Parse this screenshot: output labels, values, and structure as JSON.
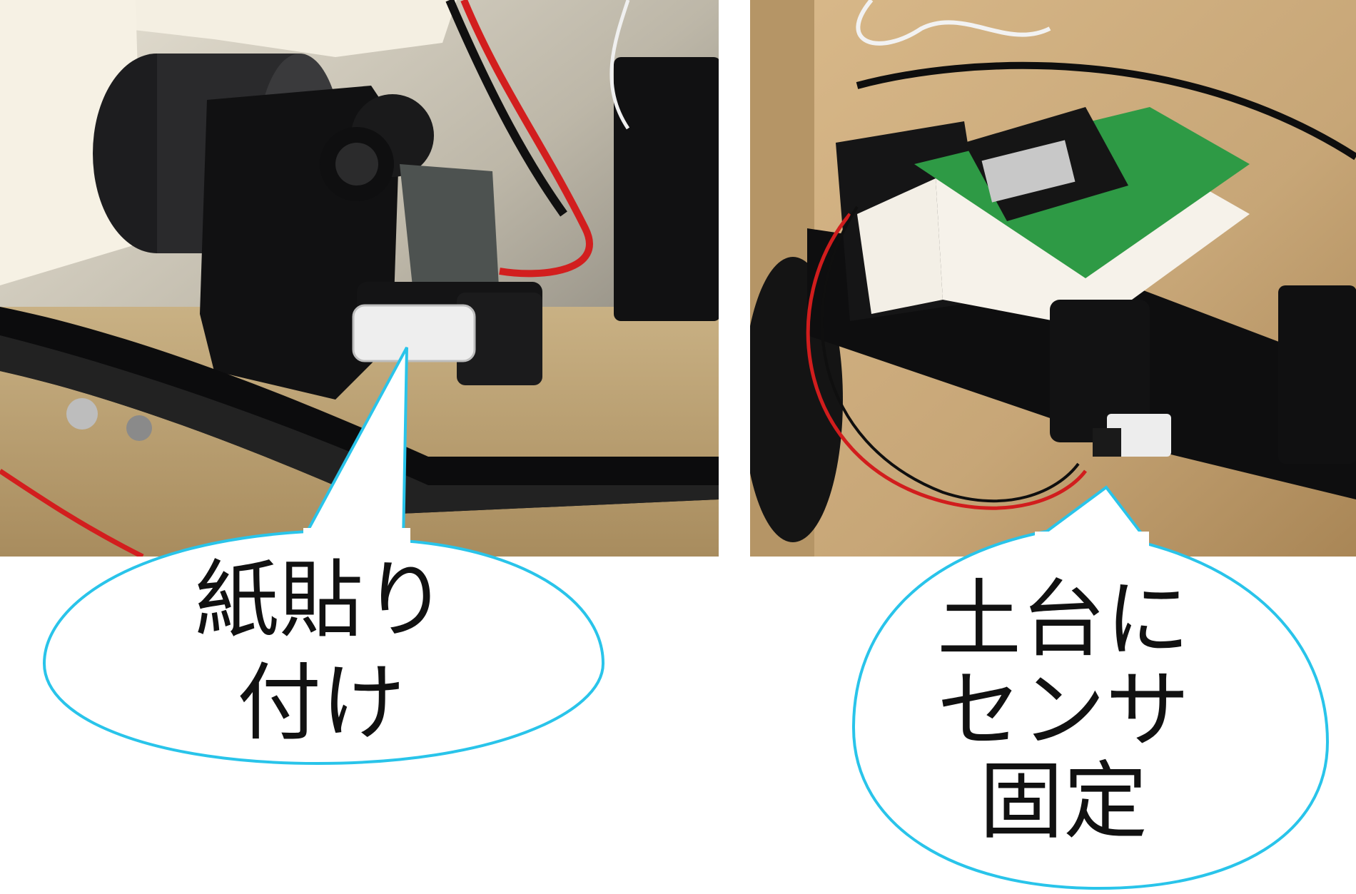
{
  "panels": [
    {
      "id": "left",
      "subject": "rc-crawler-gearbox-with-paper-patch",
      "callout_text": "紙貼り\n付け"
    },
    {
      "id": "right",
      "subject": "sensor-board-mounted-on-base",
      "callout_text": "土台に\nセンサ\n固定"
    }
  ],
  "colors": {
    "bubble_outline": "#29c4ea",
    "bubble_fill": "#ffffff",
    "text": "#111111"
  }
}
